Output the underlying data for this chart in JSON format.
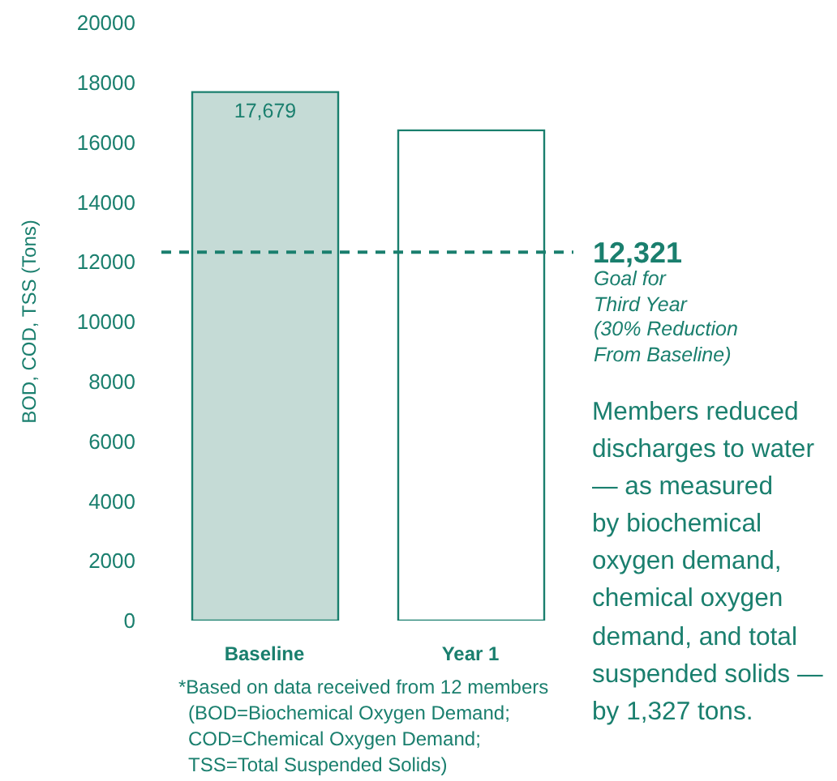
{
  "chart_data": {
    "type": "bar",
    "ylabel": "BOD, COD, TSS (Tons)",
    "categories": [
      "Baseline",
      "Year 1"
    ],
    "values": [
      17679,
      16400
    ],
    "colors": [
      "#c5dbd6",
      "#ffffff"
    ],
    "value_labels": [
      "17,679",
      null
    ],
    "ylim": [
      0,
      20000
    ],
    "yticks": [
      0,
      2000,
      4000,
      6000,
      8000,
      10000,
      12000,
      14000,
      16000,
      18000,
      20000
    ],
    "ref_lines": [
      {
        "axis": "y",
        "value": 12321,
        "label": "12,321",
        "color": "#1a7f6e",
        "line_style": "dashed"
      }
    ],
    "annotations": [
      "Goal for\nThird Year\n(30% Reduction\nFrom Baseline)",
      "Members reduced\ndischarges to water\n— as measured\nby biochemical\noxygen demand,\nchemical oxygen\ndemand, and total\nsuspended solids —\nby 1,327 tons.",
      "*Based on data received from 12 members\n(BOD=Biochemical Oxygen Demand;\nCOD=Chemical Oxygen Demand;\nTSS=Total Suspended Solids)"
    ]
  }
}
